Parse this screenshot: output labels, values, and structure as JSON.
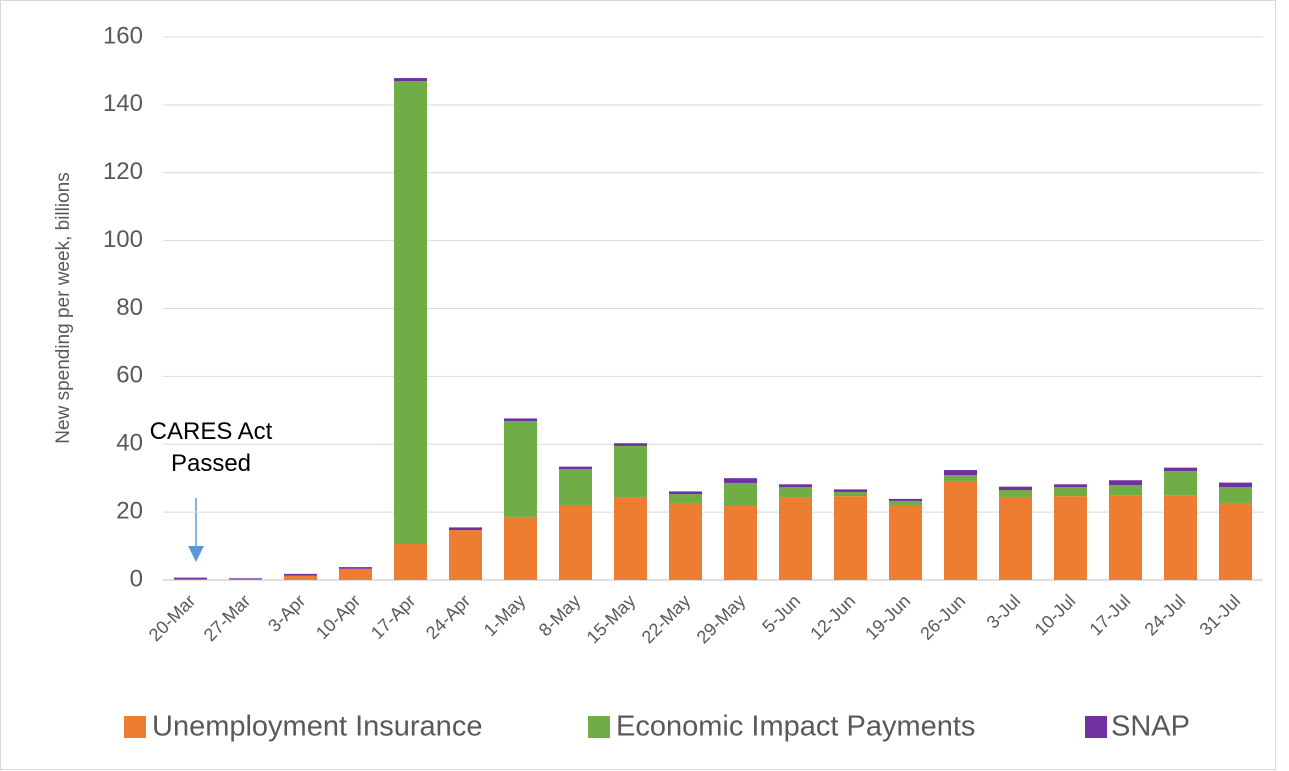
{
  "chart_data": {
    "type": "stacked-bar",
    "y_label": "New spending per week, billions",
    "annotation": "CARES Act Passed",
    "categories": [
      "20-Mar",
      "27-Mar",
      "3-Apr",
      "10-Apr",
      "17-Apr",
      "24-Apr",
      "1-May",
      "8-May",
      "15-May",
      "22-May",
      "29-May",
      "5-Jun",
      "12-Jun",
      "19-Jun",
      "26-Jun",
      "3-Jul",
      "10-Jul",
      "17-Jul",
      "24-Jul",
      "31-Jul"
    ],
    "series": [
      {
        "name": "Unemployment Insurance",
        "color": "#ed7d31",
        "values": [
          0.2,
          0.2,
          1.3,
          3.3,
          10.6,
          14.7,
          18.6,
          22.1,
          24.2,
          22.7,
          21.8,
          24.2,
          24.7,
          22.1,
          29.2,
          24.5,
          24.7,
          25.0,
          25.0,
          22.7
        ]
      },
      {
        "name": "Economic Impact Payments",
        "color": "#70ad47",
        "values": [
          0,
          0,
          0,
          0,
          136.4,
          0,
          28.2,
          10.6,
          15.3,
          2.6,
          6.8,
          3.2,
          1.2,
          1.2,
          1.7,
          2.0,
          2.7,
          3.0,
          7.1,
          4.7
        ]
      },
      {
        "name": "SNAP",
        "color": "#7030a0",
        "values": [
          0.5,
          0.3,
          0.5,
          0.5,
          0.9,
          0.8,
          0.8,
          0.7,
          0.8,
          0.8,
          1.4,
          0.8,
          0.8,
          0.6,
          1.5,
          1.0,
          0.8,
          1.4,
          1.0,
          1.3
        ]
      }
    ],
    "ylim": [
      0,
      160
    ],
    "yticks": [
      0,
      20,
      40,
      60,
      80,
      100,
      120,
      140,
      160
    ],
    "grid": true
  }
}
